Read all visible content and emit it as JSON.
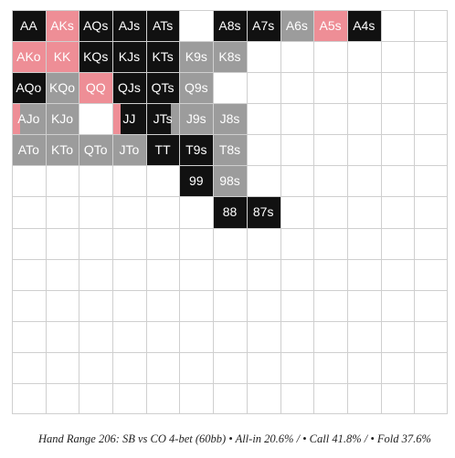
{
  "caption": "Hand Range 206: SB vs CO 4-bet (60bb) • All-in 20.6% / • Call 41.8% / • Fold 37.6%",
  "colors": {
    "raise": "#111111",
    "call": "#9c9c9c",
    "allin": "#ee8e96",
    "fold": "#ffffff",
    "grid": "#cfcfcf",
    "label": "#ffffff"
  },
  "grid": {
    "rows": 13,
    "cols": 13,
    "cells": [
      [
        {
          "label": "AA",
          "segments": [
            {
              "action": "raise",
              "share": 1
            }
          ]
        },
        {
          "label": "AKs",
          "segments": [
            {
              "action": "allin",
              "share": 1
            }
          ]
        },
        {
          "label": "AQs",
          "segments": [
            {
              "action": "raise",
              "share": 1
            }
          ]
        },
        {
          "label": "AJs",
          "segments": [
            {
              "action": "raise",
              "share": 1
            }
          ]
        },
        {
          "label": "ATs",
          "segments": [
            {
              "action": "raise",
              "share": 1
            }
          ]
        },
        {
          "label": "",
          "segments": [
            {
              "action": "fold",
              "share": 1
            }
          ]
        },
        {
          "label": "A8s",
          "segments": [
            {
              "action": "raise",
              "share": 1
            }
          ]
        },
        {
          "label": "A7s",
          "segments": [
            {
              "action": "raise",
              "share": 1
            }
          ]
        },
        {
          "label": "A6s",
          "segments": [
            {
              "action": "call",
              "share": 1
            }
          ]
        },
        {
          "label": "A5s",
          "segments": [
            {
              "action": "allin",
              "share": 1
            }
          ]
        },
        {
          "label": "A4s",
          "segments": [
            {
              "action": "raise",
              "share": 1
            }
          ]
        },
        {
          "label": "",
          "segments": []
        },
        {
          "label": "",
          "segments": []
        }
      ],
      [
        {
          "label": "AKo",
          "segments": [
            {
              "action": "allin",
              "share": 1
            }
          ]
        },
        {
          "label": "KK",
          "segments": [
            {
              "action": "allin",
              "share": 1
            }
          ]
        },
        {
          "label": "KQs",
          "segments": [
            {
              "action": "raise",
              "share": 1
            }
          ]
        },
        {
          "label": "KJs",
          "segments": [
            {
              "action": "raise",
              "share": 1
            }
          ]
        },
        {
          "label": "KTs",
          "segments": [
            {
              "action": "raise",
              "share": 1
            }
          ]
        },
        {
          "label": "K9s",
          "segments": [
            {
              "action": "call",
              "share": 1
            }
          ]
        },
        {
          "label": "K8s",
          "segments": [
            {
              "action": "call",
              "share": 1
            }
          ]
        },
        {
          "label": "",
          "segments": []
        },
        {
          "label": "",
          "segments": []
        },
        {
          "label": "",
          "segments": []
        },
        {
          "label": "",
          "segments": []
        },
        {
          "label": "",
          "segments": []
        },
        {
          "label": "",
          "segments": []
        }
      ],
      [
        {
          "label": "AQo",
          "segments": [
            {
              "action": "raise",
              "segments_note": "",
              "share": 1
            }
          ]
        },
        {
          "label": "KQo",
          "segments": [
            {
              "action": "call",
              "share": 1
            }
          ]
        },
        {
          "label": "QQ",
          "segments": [
            {
              "action": "allin",
              "share": 1
            }
          ]
        },
        {
          "label": "QJs",
          "segments": [
            {
              "action": "raise",
              "share": 1
            }
          ]
        },
        {
          "label": "QTs",
          "segments": [
            {
              "action": "raise",
              "share": 1
            }
          ]
        },
        {
          "label": "Q9s",
          "segments": [
            {
              "action": "call",
              "share": 1
            }
          ]
        },
        {
          "label": "",
          "segments": [
            {
              "action": "fold",
              "share": 1
            }
          ]
        },
        {
          "label": "",
          "segments": []
        },
        {
          "label": "",
          "segments": []
        },
        {
          "label": "",
          "segments": []
        },
        {
          "label": "",
          "segments": []
        },
        {
          "label": "",
          "segments": []
        },
        {
          "label": "",
          "segments": []
        }
      ],
      [
        {
          "label": "AJo",
          "segments": [
            {
              "action": "allin",
              "share": 0.25
            },
            {
              "action": "call",
              "share": 0.75
            }
          ]
        },
        {
          "label": "KJo",
          "segments": [
            {
              "action": "call",
              "share": 1
            }
          ]
        },
        {
          "label": "",
          "segments": [
            {
              "action": "fold",
              "share": 1
            }
          ]
        },
        {
          "label": "JJ",
          "segments": [
            {
              "action": "allin",
              "share": 0.25
            },
            {
              "action": "raise",
              "share": 0.75
            }
          ]
        },
        {
          "label": "JTs",
          "segments": [
            {
              "action": "raise",
              "share": 0.75
            },
            {
              "action": "call",
              "share": 0.25
            }
          ]
        },
        {
          "label": "J9s",
          "segments": [
            {
              "action": "call",
              "share": 1
            }
          ]
        },
        {
          "label": "J8s",
          "segments": [
            {
              "action": "call",
              "share": 1
            }
          ]
        },
        {
          "label": "",
          "segments": []
        },
        {
          "label": "",
          "segments": []
        },
        {
          "label": "",
          "segments": []
        },
        {
          "label": "",
          "segments": []
        },
        {
          "label": "",
          "segments": []
        },
        {
          "label": "",
          "segments": []
        }
      ],
      [
        {
          "label": "ATo",
          "segments": [
            {
              "action": "call",
              "share": 1
            }
          ]
        },
        {
          "label": "KTo",
          "segments": [
            {
              "action": "call",
              "share": 1
            }
          ]
        },
        {
          "label": "QTo",
          "segments": [
            {
              "action": "call",
              "share": 1
            }
          ]
        },
        {
          "label": "JTo",
          "segments": [
            {
              "action": "call",
              "share": 1
            }
          ]
        },
        {
          "label": "TT",
          "segments": [
            {
              "action": "raise",
              "share": 1
            }
          ]
        },
        {
          "label": "T9s",
          "segments": [
            {
              "action": "raise",
              "share": 1
            }
          ]
        },
        {
          "label": "T8s",
          "segments": [
            {
              "action": "call",
              "share": 1
            }
          ]
        },
        {
          "label": "",
          "segments": []
        },
        {
          "label": "",
          "segments": []
        },
        {
          "label": "",
          "segments": []
        },
        {
          "label": "",
          "segments": []
        },
        {
          "label": "",
          "segments": []
        },
        {
          "label": "",
          "segments": []
        }
      ],
      [
        {
          "label": "",
          "segments": []
        },
        {
          "label": "",
          "segments": []
        },
        {
          "label": "",
          "segments": []
        },
        {
          "label": "",
          "segments": []
        },
        {
          "label": "",
          "segments": []
        },
        {
          "label": "99",
          "segments": [
            {
              "action": "raise",
              "share": 1
            }
          ]
        },
        {
          "label": "98s",
          "segments": [
            {
              "action": "call",
              "share": 1
            }
          ]
        },
        {
          "label": "",
          "segments": []
        },
        {
          "label": "",
          "segments": []
        },
        {
          "label": "",
          "segments": []
        },
        {
          "label": "",
          "segments": []
        },
        {
          "label": "",
          "segments": []
        },
        {
          "label": "",
          "segments": []
        }
      ],
      [
        {
          "label": "",
          "segments": []
        },
        {
          "label": "",
          "segments": []
        },
        {
          "label": "",
          "segments": []
        },
        {
          "label": "",
          "segments": []
        },
        {
          "label": "",
          "segments": []
        },
        {
          "label": "",
          "segments": []
        },
        {
          "label": "88",
          "segments": [
            {
              "action": "raise",
              "share": 1
            }
          ]
        },
        {
          "label": "87s",
          "segments": [
            {
              "action": "raise",
              "share": 1
            }
          ]
        },
        {
          "label": "",
          "segments": []
        },
        {
          "label": "",
          "segments": []
        },
        {
          "label": "",
          "segments": []
        },
        {
          "label": "",
          "segments": []
        },
        {
          "label": "",
          "segments": []
        }
      ],
      [
        {
          "label": "",
          "segments": []
        },
        {
          "label": "",
          "segments": []
        },
        {
          "label": "",
          "segments": []
        },
        {
          "label": "",
          "segments": []
        },
        {
          "label": "",
          "segments": []
        },
        {
          "label": "",
          "segments": []
        },
        {
          "label": "",
          "segments": []
        },
        {
          "label": "",
          "segments": []
        },
        {
          "label": "",
          "segments": []
        },
        {
          "label": "",
          "segments": []
        },
        {
          "label": "",
          "segments": []
        },
        {
          "label": "",
          "segments": []
        },
        {
          "label": "",
          "segments": []
        }
      ],
      [
        {
          "label": "",
          "segments": []
        },
        {
          "label": "",
          "segments": []
        },
        {
          "label": "",
          "segments": []
        },
        {
          "label": "",
          "segments": []
        },
        {
          "label": "",
          "segments": []
        },
        {
          "label": "",
          "segments": []
        },
        {
          "label": "",
          "segments": []
        },
        {
          "label": "",
          "segments": []
        },
        {
          "label": "",
          "segments": []
        },
        {
          "label": "",
          "segments": []
        },
        {
          "label": "",
          "segments": []
        },
        {
          "label": "",
          "segments": []
        },
        {
          "label": "",
          "segments": []
        }
      ],
      [
        {
          "label": "",
          "segments": []
        },
        {
          "label": "",
          "segments": []
        },
        {
          "label": "",
          "segments": []
        },
        {
          "label": "",
          "segments": []
        },
        {
          "label": "",
          "segments": []
        },
        {
          "label": "",
          "segments": []
        },
        {
          "label": "",
          "segments": []
        },
        {
          "label": "",
          "segments": []
        },
        {
          "label": "",
          "segments": []
        },
        {
          "label": "",
          "segments": []
        },
        {
          "label": "",
          "segments": []
        },
        {
          "label": "",
          "segments": []
        },
        {
          "label": "",
          "segments": []
        }
      ],
      [
        {
          "label": "",
          "segments": []
        },
        {
          "label": "",
          "segments": []
        },
        {
          "label": "",
          "segments": []
        },
        {
          "label": "",
          "segments": []
        },
        {
          "label": "",
          "segments": []
        },
        {
          "label": "",
          "segments": []
        },
        {
          "label": "",
          "segments": []
        },
        {
          "label": "",
          "segments": []
        },
        {
          "label": "",
          "segments": []
        },
        {
          "label": "",
          "segments": []
        },
        {
          "label": "",
          "segments": []
        },
        {
          "label": "",
          "segments": []
        },
        {
          "label": "",
          "segments": []
        }
      ],
      [
        {
          "label": "",
          "segments": []
        },
        {
          "label": "",
          "segments": []
        },
        {
          "label": "",
          "segments": []
        },
        {
          "label": "",
          "segments": []
        },
        {
          "label": "",
          "segments": []
        },
        {
          "label": "",
          "segments": []
        },
        {
          "label": "",
          "segments": []
        },
        {
          "label": "",
          "segments": []
        },
        {
          "label": "",
          "segments": []
        },
        {
          "label": "",
          "segments": []
        },
        {
          "label": "",
          "segments": []
        },
        {
          "label": "",
          "segments": []
        },
        {
          "label": "",
          "segments": []
        }
      ],
      [
        {
          "label": "",
          "segments": []
        },
        {
          "label": "",
          "segments": []
        },
        {
          "label": "",
          "segments": []
        },
        {
          "label": "",
          "segments": []
        },
        {
          "label": "",
          "segments": []
        },
        {
          "label": "",
          "segments": []
        },
        {
          "label": "",
          "segments": []
        },
        {
          "label": "",
          "segments": []
        },
        {
          "label": "",
          "segments": []
        },
        {
          "label": "",
          "segments": []
        },
        {
          "label": "",
          "segments": []
        },
        {
          "label": "",
          "segments": []
        },
        {
          "label": "",
          "segments": []
        }
      ]
    ]
  }
}
